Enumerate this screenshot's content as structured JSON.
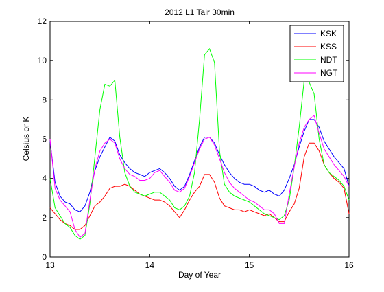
{
  "chart_data": {
    "type": "line",
    "title": "2012 L1 Tair 30min",
    "xlabel": "Day of Year",
    "ylabel": "Celsius or K",
    "xlim": [
      13,
      16
    ],
    "ylim": [
      0,
      12
    ],
    "xticks": [
      13,
      14,
      15,
      16
    ],
    "yticks": [
      0,
      2,
      4,
      6,
      8,
      10,
      12
    ],
    "grid": false,
    "legend_position": "top-right",
    "x": [
      13.0,
      13.05,
      13.1,
      13.15,
      13.2,
      13.25,
      13.3,
      13.35,
      13.4,
      13.45,
      13.5,
      13.55,
      13.6,
      13.65,
      13.7,
      13.75,
      13.8,
      13.85,
      13.9,
      13.95,
      14.0,
      14.05,
      14.1,
      14.15,
      14.2,
      14.25,
      14.3,
      14.35,
      14.4,
      14.45,
      14.5,
      14.55,
      14.6,
      14.65,
      14.7,
      14.75,
      14.8,
      14.85,
      14.9,
      14.95,
      15.0,
      15.05,
      15.1,
      15.15,
      15.2,
      15.25,
      15.3,
      15.35,
      15.4,
      15.45,
      15.5,
      15.55,
      15.6,
      15.65,
      15.7,
      15.75,
      15.8,
      15.85,
      15.9,
      15.95,
      16.0
    ],
    "series": [
      {
        "name": "KSK",
        "color": "#0000ff",
        "values": [
          5.9,
          3.8,
          3.1,
          2.8,
          2.7,
          2.4,
          2.3,
          2.6,
          3.3,
          4.4,
          5.1,
          5.6,
          6.1,
          5.9,
          5.2,
          4.8,
          4.5,
          4.3,
          4.2,
          4.1,
          4.3,
          4.4,
          4.5,
          4.3,
          4.0,
          3.6,
          3.4,
          3.6,
          4.2,
          4.9,
          5.6,
          6.1,
          6.1,
          5.8,
          5.2,
          4.7,
          4.3,
          4.0,
          3.8,
          3.7,
          3.7,
          3.6,
          3.4,
          3.3,
          3.4,
          3.2,
          3.1,
          3.4,
          4.0,
          4.7,
          5.6,
          6.4,
          7.0,
          7.0,
          6.6,
          5.9,
          5.5,
          5.1,
          4.8,
          4.5,
          3.6
        ]
      },
      {
        "name": "KSS",
        "color": "#ff0000",
        "values": [
          2.5,
          2.2,
          1.9,
          1.7,
          1.6,
          1.4,
          1.4,
          1.6,
          2.1,
          2.6,
          2.8,
          3.1,
          3.5,
          3.6,
          3.6,
          3.7,
          3.6,
          3.4,
          3.2,
          3.1,
          3.0,
          2.9,
          2.9,
          2.8,
          2.6,
          2.3,
          2.0,
          2.4,
          2.9,
          3.3,
          3.6,
          4.2,
          4.2,
          3.8,
          3.0,
          2.6,
          2.5,
          2.4,
          2.4,
          2.3,
          2.4,
          2.3,
          2.2,
          2.1,
          2.2,
          2.0,
          1.8,
          1.8,
          2.3,
          2.7,
          3.5,
          5.1,
          5.8,
          5.8,
          5.4,
          4.7,
          4.3,
          4.0,
          3.8,
          3.5,
          2.2
        ]
      },
      {
        "name": "NDT",
        "color": "#00ff00",
        "values": [
          4.0,
          2.5,
          2.1,
          1.7,
          1.5,
          1.1,
          0.9,
          1.1,
          2.7,
          5.1,
          7.5,
          8.8,
          8.7,
          9.0,
          6.1,
          4.3,
          3.6,
          3.3,
          3.2,
          3.1,
          3.2,
          3.3,
          3.3,
          3.1,
          2.9,
          2.5,
          2.4,
          2.6,
          3.1,
          4.3,
          7.0,
          10.3,
          10.6,
          9.9,
          5.4,
          3.7,
          3.3,
          3.1,
          3.0,
          2.9,
          2.8,
          2.6,
          2.4,
          2.2,
          2.1,
          2.0,
          1.9,
          2.1,
          2.9,
          4.6,
          6.6,
          9.0,
          8.9,
          8.3,
          6.0,
          4.7,
          4.3,
          4.1,
          3.9,
          3.6,
          2.9
        ]
      },
      {
        "name": "NGT",
        "color": "#ff00ff",
        "values": [
          6.0,
          3.5,
          2.9,
          2.6,
          2.3,
          1.4,
          1.0,
          1.2,
          2.9,
          4.5,
          5.4,
          5.8,
          6.0,
          5.8,
          5.0,
          4.5,
          4.2,
          4.1,
          3.9,
          3.9,
          4.0,
          4.3,
          4.4,
          4.1,
          3.8,
          3.4,
          3.3,
          3.5,
          4.1,
          4.8,
          5.5,
          6.0,
          6.1,
          5.7,
          5.0,
          4.3,
          3.8,
          3.5,
          3.3,
          3.1,
          2.9,
          2.8,
          2.6,
          2.4,
          2.4,
          2.2,
          1.7,
          1.7,
          3.2,
          4.6,
          5.8,
          6.6,
          7.0,
          7.2,
          6.3,
          5.5,
          5.1,
          4.7,
          4.4,
          4.1,
          3.6
        ]
      }
    ]
  }
}
